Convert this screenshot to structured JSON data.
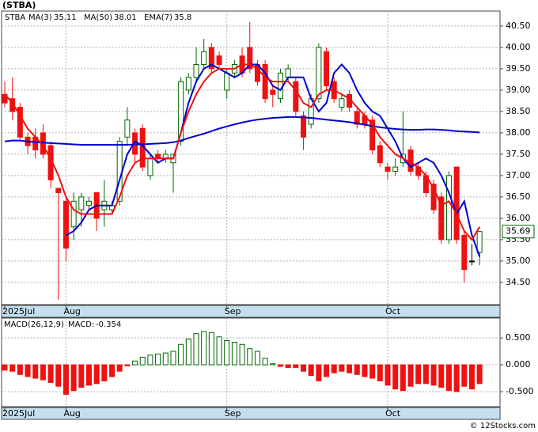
{
  "title": "(STBA)",
  "footer": "© 12Stocks.com",
  "chart_data": [
    {
      "type": "candlestick",
      "symbol": "STBA",
      "categories": [
        "2025Jul",
        null,
        null,
        null,
        null,
        null,
        null,
        null,
        "Aug",
        null,
        null,
        null,
        null,
        null,
        null,
        null,
        null,
        null,
        null,
        null,
        null,
        null,
        null,
        null,
        null,
        null,
        null,
        null,
        null,
        "Sep",
        null,
        null,
        null,
        null,
        null,
        null,
        null,
        null,
        null,
        null,
        null,
        null,
        null,
        null,
        null,
        null,
        null,
        null,
        null,
        null,
        "Oct",
        null,
        null,
        null,
        null,
        null,
        null,
        null,
        null,
        null,
        null,
        null,
        null
      ],
      "open": [
        38.9,
        38.8,
        38.6,
        37.9,
        37.9,
        38.0,
        37.7,
        36.7,
        36.4,
        35.8,
        36.2,
        36.3,
        36.6,
        36.2,
        36.2,
        36.4,
        37.9,
        38.0,
        38.1,
        37.0,
        37.5,
        37.4,
        37.3,
        37.8,
        39.0,
        39.3,
        39.6,
        40.0,
        39.8,
        39.0,
        39.4,
        39.8,
        40.0,
        39.6,
        39.6,
        39.0,
        38.8,
        39.3,
        39.2,
        38.4,
        38.2,
        38.8,
        39.9,
        39.2,
        38.6,
        38.9,
        38.5,
        38.4,
        38.3,
        37.7,
        37.2,
        37.1,
        37.3,
        37.6,
        37.2,
        37.0,
        36.8,
        36.5,
        35.5,
        37.2,
        35.6,
        35.0,
        35.2
      ],
      "high": [
        39.2,
        39.3,
        38.7,
        38.0,
        38.1,
        38.2,
        37.8,
        36.7,
        36.5,
        36.6,
        36.6,
        36.5,
        36.6,
        36.9,
        36.4,
        37.9,
        38.6,
        38.1,
        38.2,
        37.5,
        37.6,
        37.6,
        37.5,
        39.3,
        39.4,
        40.0,
        40.2,
        40.1,
        39.9,
        39.5,
        39.7,
        40.0,
        40.6,
        39.7,
        39.7,
        39.1,
        39.5,
        39.6,
        39.3,
        38.5,
        38.9,
        40.1,
        40.0,
        39.3,
        38.9,
        39.0,
        38.6,
        38.5,
        38.4,
        37.8,
        37.3,
        37.4,
        38.5,
        37.7,
        37.3,
        37.1,
        36.9,
        36.6,
        37.1,
        37.2,
        35.7,
        35.4,
        35.7
      ],
      "low": [
        38.6,
        38.3,
        37.8,
        37.5,
        37.4,
        37.4,
        36.7,
        34.1,
        35.0,
        35.5,
        35.8,
        36.2,
        35.7,
        35.8,
        36.1,
        36.3,
        37.7,
        37.3,
        37.1,
        36.9,
        37.3,
        37.3,
        36.6,
        37.7,
        38.9,
        39.2,
        39.5,
        39.4,
        39.5,
        38.8,
        39.3,
        39.3,
        39.4,
        39.1,
        38.7,
        38.6,
        38.7,
        39.2,
        38.4,
        37.6,
        38.1,
        38.7,
        39.0,
        38.7,
        38.5,
        38.5,
        38.1,
        38.1,
        37.5,
        37.2,
        36.9,
        37.0,
        37.2,
        37.0,
        36.9,
        36.5,
        36.1,
        35.4,
        35.4,
        35.4,
        34.5,
        34.9,
        34.9
      ],
      "close": [
        38.7,
        38.5,
        37.9,
        37.7,
        37.6,
        37.5,
        36.9,
        36.6,
        35.3,
        36.4,
        36.5,
        36.4,
        36.0,
        36.4,
        36.3,
        37.8,
        38.3,
        37.5,
        37.2,
        37.4,
        37.4,
        37.5,
        37.5,
        39.2,
        39.3,
        39.6,
        39.9,
        39.5,
        39.6,
        39.4,
        39.6,
        39.4,
        39.5,
        39.2,
        38.8,
        38.9,
        39.4,
        39.5,
        38.5,
        37.9,
        38.8,
        40.0,
        39.1,
        38.8,
        38.8,
        38.6,
        38.2,
        38.2,
        37.6,
        37.3,
        37.1,
        37.2,
        37.5,
        37.1,
        37.0,
        36.6,
        36.2,
        35.5,
        37.0,
        35.5,
        34.8,
        35.0,
        35.69
      ],
      "series": [
        {
          "name": "MA(3)",
          "last": 35.11,
          "color": "#0000cc",
          "values": [
            null,
            null,
            null,
            null,
            null,
            null,
            null,
            null,
            35.6,
            35.7,
            35.9,
            36.2,
            36.3,
            36.3,
            36.3,
            36.9,
            37.5,
            37.8,
            37.7,
            37.5,
            37.3,
            37.4,
            37.4,
            38.0,
            38.7,
            39.2,
            39.5,
            39.6,
            39.5,
            39.4,
            39.3,
            39.4,
            39.6,
            39.6,
            39.4,
            39.1,
            39.0,
            39.3,
            39.3,
            39.3,
            38.8,
            38.5,
            38.7,
            39.4,
            39.6,
            39.4,
            39.0,
            38.7,
            38.5,
            38.4,
            38.1,
            37.8,
            37.4,
            37.2,
            37.3,
            37.4,
            37.3,
            37.0,
            36.6,
            36.1,
            36.4,
            35.6,
            35.1
          ]
        },
        {
          "name": "MA(50)",
          "last": 38.01,
          "color": "#0000cc",
          "values": [
            37.8,
            37.82,
            37.82,
            37.8,
            37.78,
            37.77,
            37.76,
            37.75,
            37.74,
            37.73,
            37.72,
            37.72,
            37.72,
            37.72,
            37.72,
            37.72,
            37.72,
            37.73,
            37.73,
            37.74,
            37.75,
            37.76,
            37.78,
            37.82,
            37.88,
            37.93,
            37.98,
            38.04,
            38.1,
            38.15,
            38.2,
            38.24,
            38.28,
            38.31,
            38.33,
            38.35,
            38.36,
            38.37,
            38.37,
            38.36,
            38.35,
            38.33,
            38.31,
            38.29,
            38.27,
            38.25,
            38.22,
            38.19,
            38.16,
            38.13,
            38.11,
            38.09,
            38.08,
            38.07,
            38.07,
            38.08,
            38.08,
            38.07,
            38.06,
            38.04,
            38.03,
            38.02,
            38.01
          ]
        },
        {
          "name": "EMA(7)",
          "last": 35.8,
          "color": "#ee1111",
          "values": [
            38.9,
            38.7,
            38.4,
            38.1,
            37.9,
            37.7,
            37.4,
            37.0,
            36.5,
            36.2,
            36.1,
            36.1,
            36.1,
            36.1,
            36.1,
            36.5,
            37.0,
            37.3,
            37.4,
            37.4,
            37.4,
            37.4,
            37.4,
            38.0,
            38.5,
            38.9,
            39.2,
            39.4,
            39.5,
            39.5,
            39.5,
            39.6,
            39.6,
            39.5,
            39.3,
            39.2,
            39.2,
            39.2,
            39.0,
            38.7,
            38.6,
            38.9,
            39.0,
            39.0,
            38.9,
            38.8,
            38.6,
            38.4,
            38.2,
            37.9,
            37.7,
            37.5,
            37.4,
            37.3,
            37.2,
            37.0,
            36.7,
            36.3,
            36.4,
            36.1,
            35.7,
            35.5,
            35.8
          ]
        }
      ],
      "up_color": "#006600",
      "down_color": "#ee1111",
      "last_price": 35.69,
      "ylim": [
        33.98,
        40.85
      ],
      "yticks": [
        {
          "value": 34.5,
          "label": "34.50"
        },
        {
          "value": 35.0,
          "label": "35.00"
        },
        {
          "value": 35.5,
          "label": "35.50"
        },
        {
          "value": 36.0,
          "label": "36.00"
        },
        {
          "value": 36.5,
          "label": "36.50"
        },
        {
          "value": 37.0,
          "label": "37.00"
        },
        {
          "value": 37.5,
          "label": "37.50"
        },
        {
          "value": 38.0,
          "label": "38.00"
        },
        {
          "value": 38.5,
          "label": "38.50"
        },
        {
          "value": 39.0,
          "label": "39.00"
        },
        {
          "value": 39.5,
          "label": "39.50"
        },
        {
          "value": 40.0,
          "label": "40.00"
        },
        {
          "value": 40.5,
          "label": "40.50"
        }
      ],
      "grid": true
    },
    {
      "type": "bar",
      "title": "MACD(26,12,9)",
      "value_name": "MACD:",
      "last": -0.354,
      "categories": [
        "2025Jul",
        null,
        null,
        null,
        null,
        null,
        null,
        null,
        "Aug",
        null,
        null,
        null,
        null,
        null,
        null,
        null,
        null,
        null,
        null,
        null,
        null,
        null,
        null,
        null,
        null,
        null,
        null,
        null,
        null,
        "Sep",
        null,
        null,
        null,
        null,
        null,
        null,
        null,
        null,
        null,
        null,
        null,
        null,
        null,
        null,
        null,
        null,
        null,
        null,
        null,
        null,
        "Oct",
        null,
        null,
        null,
        null,
        null,
        null,
        null,
        null,
        null,
        null,
        null,
        null
      ],
      "values": [
        -0.1,
        -0.12,
        -0.18,
        -0.22,
        -0.25,
        -0.28,
        -0.33,
        -0.4,
        -0.55,
        -0.48,
        -0.42,
        -0.38,
        -0.35,
        -0.3,
        -0.22,
        -0.12,
        -0.02,
        0.07,
        0.14,
        0.18,
        0.2,
        0.22,
        0.25,
        0.38,
        0.48,
        0.58,
        0.62,
        0.6,
        0.52,
        0.45,
        0.42,
        0.38,
        0.3,
        0.25,
        0.12,
        0.02,
        -0.03,
        -0.05,
        -0.05,
        -0.12,
        -0.2,
        -0.3,
        -0.22,
        -0.15,
        -0.12,
        -0.15,
        -0.18,
        -0.22,
        -0.25,
        -0.3,
        -0.38,
        -0.45,
        -0.48,
        -0.4,
        -0.35,
        -0.35,
        -0.38,
        -0.42,
        -0.48,
        -0.5,
        -0.4,
        -0.45,
        -0.35
      ],
      "up_color": "#006600",
      "down_color": "#ee1111",
      "ylim": [
        -0.78,
        0.87
      ],
      "yticks": [
        {
          "value": 0.5,
          "label": "0.500"
        },
        {
          "value": 0.0,
          "label": "0.000"
        },
        {
          "value": -0.5,
          "label": "-0.500"
        }
      ],
      "grid": true
    }
  ]
}
